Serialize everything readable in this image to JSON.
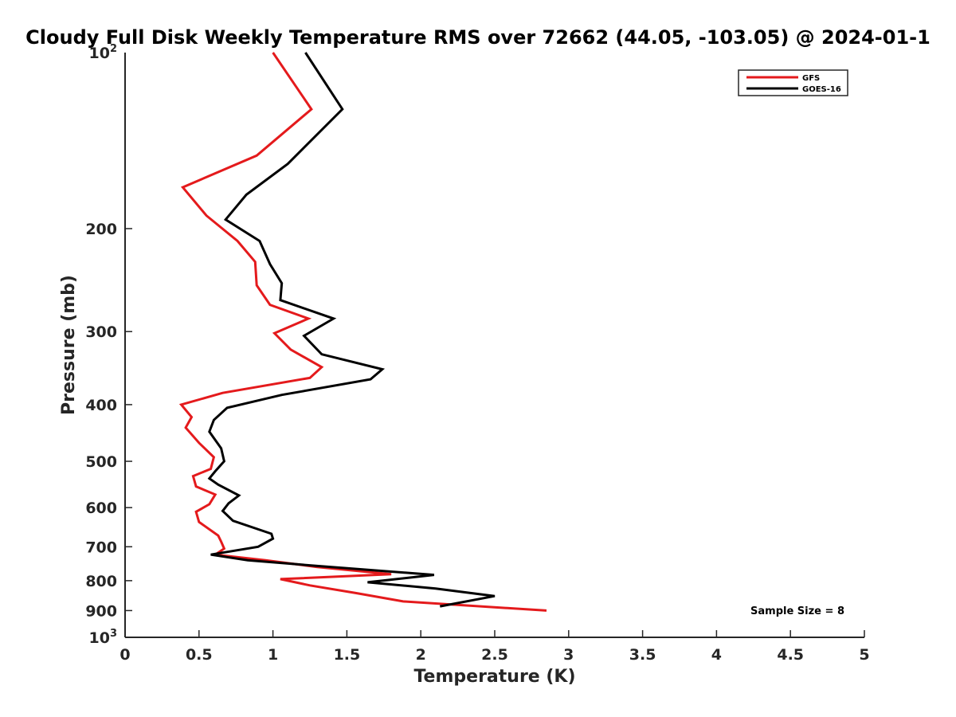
{
  "chart_data": {
    "type": "line",
    "title": "Cloudy Full Disk Weekly Temperature RMS over 72662 (44.05, -103.05) @ 2024-01-1",
    "xlabel": "Temperature (K)",
    "ylabel": "Pressure (mb)",
    "xlim": [
      0,
      5
    ],
    "ylim": [
      100,
      1000
    ],
    "yscale": "log",
    "y_reversed": true,
    "x_ticks": [
      "0",
      "0.5",
      "1",
      "1.5",
      "2",
      "2.5",
      "3",
      "3.5",
      "4",
      "4.5",
      "5"
    ],
    "y_ticks": [
      {
        "value": 100,
        "label": "10",
        "exp": "2"
      },
      {
        "value": 200,
        "label": "200"
      },
      {
        "value": 300,
        "label": "300"
      },
      {
        "value": 400,
        "label": "400"
      },
      {
        "value": 500,
        "label": "500"
      },
      {
        "value": 600,
        "label": "600"
      },
      {
        "value": 700,
        "label": "700"
      },
      {
        "value": 800,
        "label": "800"
      },
      {
        "value": 900,
        "label": "900"
      },
      {
        "value": 1000,
        "label": "10",
        "exp": "3"
      }
    ],
    "grid": false,
    "legend_position": "top-right",
    "series": [
      {
        "name": "GFS",
        "color": "#e41a1c",
        "points": [
          [
            1.0,
            100
          ],
          [
            1.26,
            125
          ],
          [
            0.89,
            150
          ],
          [
            0.39,
            170
          ],
          [
            0.55,
            190
          ],
          [
            0.76,
            210
          ],
          [
            0.88,
            228
          ],
          [
            0.89,
            250
          ],
          [
            0.98,
            270
          ],
          [
            1.24,
            285
          ],
          [
            1.01,
            302
          ],
          [
            1.12,
            322
          ],
          [
            1.33,
            345
          ],
          [
            1.25,
            360
          ],
          [
            0.66,
            382
          ],
          [
            0.38,
            400
          ],
          [
            0.45,
            420
          ],
          [
            0.41,
            438
          ],
          [
            0.5,
            465
          ],
          [
            0.6,
            492
          ],
          [
            0.58,
            515
          ],
          [
            0.46,
            530
          ],
          [
            0.48,
            552
          ],
          [
            0.61,
            570
          ],
          [
            0.57,
            592
          ],
          [
            0.48,
            610
          ],
          [
            0.5,
            635
          ],
          [
            0.63,
            670
          ],
          [
            0.65,
            686
          ],
          [
            0.67,
            705
          ],
          [
            0.61,
            722
          ],
          [
            0.95,
            738
          ],
          [
            1.3,
            758
          ],
          [
            1.8,
            780
          ],
          [
            1.05,
            795
          ],
          [
            1.25,
            815
          ],
          [
            1.56,
            840
          ],
          [
            1.88,
            868
          ],
          [
            2.85,
            900
          ]
        ]
      },
      {
        "name": "GOES-16",
        "color": "#000000",
        "points": [
          [
            1.22,
            100
          ],
          [
            1.47,
            125
          ],
          [
            1.1,
            155
          ],
          [
            0.82,
            175
          ],
          [
            0.68,
            193
          ],
          [
            0.91,
            210
          ],
          [
            0.98,
            230
          ],
          [
            1.06,
            248
          ],
          [
            1.05,
            265
          ],
          [
            1.41,
            285
          ],
          [
            1.21,
            305
          ],
          [
            1.33,
            328
          ],
          [
            1.74,
            348
          ],
          [
            1.66,
            362
          ],
          [
            1.06,
            385
          ],
          [
            0.69,
            405
          ],
          [
            0.6,
            425
          ],
          [
            0.57,
            445
          ],
          [
            0.65,
            475
          ],
          [
            0.67,
            500
          ],
          [
            0.61,
            520
          ],
          [
            0.57,
            535
          ],
          [
            0.63,
            548
          ],
          [
            0.77,
            572
          ],
          [
            0.7,
            590
          ],
          [
            0.66,
            608
          ],
          [
            0.73,
            632
          ],
          [
            0.99,
            665
          ],
          [
            1.0,
            678
          ],
          [
            0.9,
            700
          ],
          [
            0.58,
            722
          ],
          [
            0.83,
            738
          ],
          [
            1.3,
            755
          ],
          [
            2.09,
            782
          ],
          [
            1.64,
            805
          ],
          [
            2.1,
            825
          ],
          [
            2.5,
            850
          ],
          [
            2.13,
            885
          ]
        ]
      }
    ],
    "annotations": [
      "Sample Size = 8"
    ]
  }
}
